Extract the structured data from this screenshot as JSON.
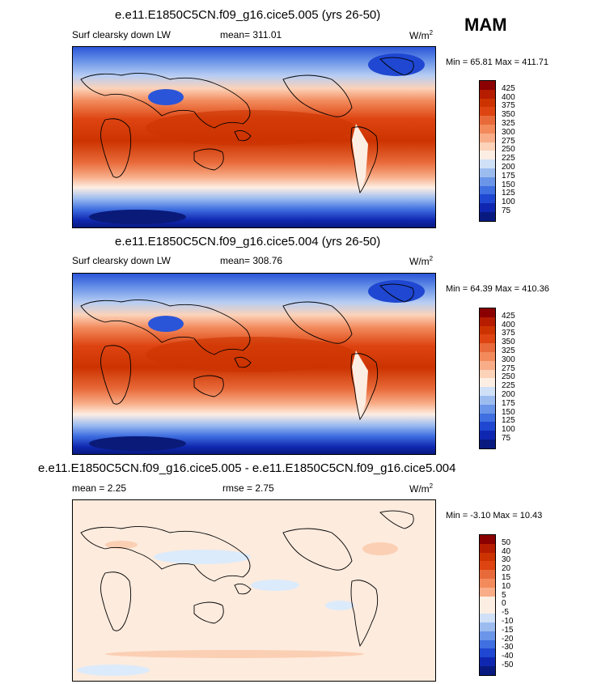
{
  "season": "MAM",
  "panels": [
    {
      "title": "e.e11.E1850C5CN.f09_g16.cice5.005 (yrs 26-50)",
      "left_label": "Surf clearsky down LW",
      "center_label": "mean= 311.01",
      "units": "W/m",
      "units_sup": "2",
      "minmax": "Min =  65.81 Max = 411.71",
      "colorbar": {
        "ticks": [
          "425",
          "400",
          "375",
          "350",
          "325",
          "300",
          "275",
          "250",
          "225",
          "200",
          "175",
          "150",
          "125",
          "100",
          "75"
        ],
        "colors": [
          "#8b0000",
          "#b51c00",
          "#cc3300",
          "#dd4411",
          "#e86a3a",
          "#f28a5c",
          "#f8ad88",
          "#fcd2b8",
          "#fdeee3",
          "#cfe0f7",
          "#9cbcf0",
          "#6b95e8",
          "#3f6fe0",
          "#1f47d1",
          "#0f27b0",
          "#081a80"
        ]
      }
    },
    {
      "title": "e.e11.E1850C5CN.f09_g16.cice5.004 (yrs 26-50)",
      "left_label": "Surf clearsky down LW",
      "center_label": "mean= 308.76",
      "units": "W/m",
      "units_sup": "2",
      "minmax": "Min =  64.39 Max = 410.36",
      "colorbar": {
        "ticks": [
          "425",
          "400",
          "375",
          "350",
          "325",
          "300",
          "275",
          "250",
          "225",
          "200",
          "175",
          "150",
          "125",
          "100",
          "75"
        ],
        "colors": [
          "#8b0000",
          "#b51c00",
          "#cc3300",
          "#dd4411",
          "#e86a3a",
          "#f28a5c",
          "#f8ad88",
          "#fcd2b8",
          "#fdeee3",
          "#cfe0f7",
          "#9cbcf0",
          "#6b95e8",
          "#3f6fe0",
          "#1f47d1",
          "#0f27b0",
          "#081a80"
        ]
      }
    },
    {
      "title": "e.e11.E1850C5CN.f09_g16.cice5.005 - e.e11.E1850C5CN.f09_g16.cice5.004",
      "left_label": "mean =   2.25",
      "center_label": "rmse =   2.75",
      "units": "W/m",
      "units_sup": "2",
      "minmax": "Min =  -3.10 Max =  10.43",
      "colorbar": {
        "ticks": [
          "50",
          "40",
          "30",
          "20",
          "15",
          "10",
          "5",
          "0",
          "-5",
          "-10",
          "-15",
          "-20",
          "-30",
          "-40",
          "-50"
        ],
        "colors": [
          "#8b0000",
          "#b51c00",
          "#cc3300",
          "#dd4411",
          "#e86a3a",
          "#f28a5c",
          "#f8ad88",
          "#fdeee3",
          "#fdeee3",
          "#cfe0f7",
          "#9cbcf0",
          "#6b95e8",
          "#3f6fe0",
          "#1f47d1",
          "#0f27b0",
          "#081a80"
        ]
      }
    }
  ]
}
